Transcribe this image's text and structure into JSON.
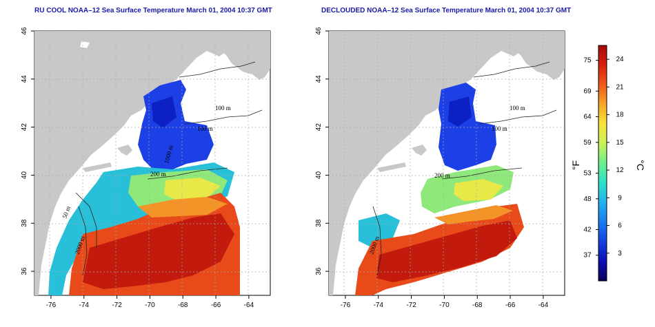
{
  "panels": [
    {
      "id": "left",
      "title": "RU COOL NOAA–12 Sea Surface Temperature March 01, 2004 10:37 GMT",
      "contour_labels": [
        "100 m",
        "100 m",
        "200 m",
        "50 m",
        "2000 m",
        "1000 m"
      ]
    },
    {
      "id": "right",
      "title": "DECLOUDED NOAA–12 Sea Surface Temperature March 01, 2004 10:37 GMT",
      "contour_labels": [
        "100 m",
        "100 m",
        "200 m",
        "2000 m"
      ]
    }
  ],
  "axes": {
    "x_ticks": [
      "-76",
      "-74",
      "-72",
      "-70",
      "-68",
      "-66",
      "-64"
    ],
    "y_ticks": [
      "46",
      "44",
      "42",
      "40",
      "38",
      "36"
    ],
    "lon_range": [
      -77,
      -62.7
    ],
    "lat_range": [
      35,
      46
    ]
  },
  "colorbar": {
    "fahrenheit_label": "°F",
    "celsius_label": "°C",
    "fahrenheit_ticks": [
      "75",
      "69",
      "64",
      "59",
      "53",
      "48",
      "42",
      "37"
    ],
    "celsius_ticks": [
      "24",
      "21",
      "18",
      "15",
      "12",
      "9",
      "6",
      "3"
    ],
    "colors": [
      "#08005a",
      "#0b0fb4",
      "#1440e0",
      "#1b7cf0",
      "#22b2ee",
      "#2ee0c8",
      "#6cf08c",
      "#c8f25a",
      "#f8e23a",
      "#f6a628",
      "#ee5a1a",
      "#d8200e",
      "#a40a08"
    ]
  },
  "colors": {
    "land": "#c8c8c8",
    "title": "#1a1aa8",
    "grid": "#aaaaaa"
  }
}
